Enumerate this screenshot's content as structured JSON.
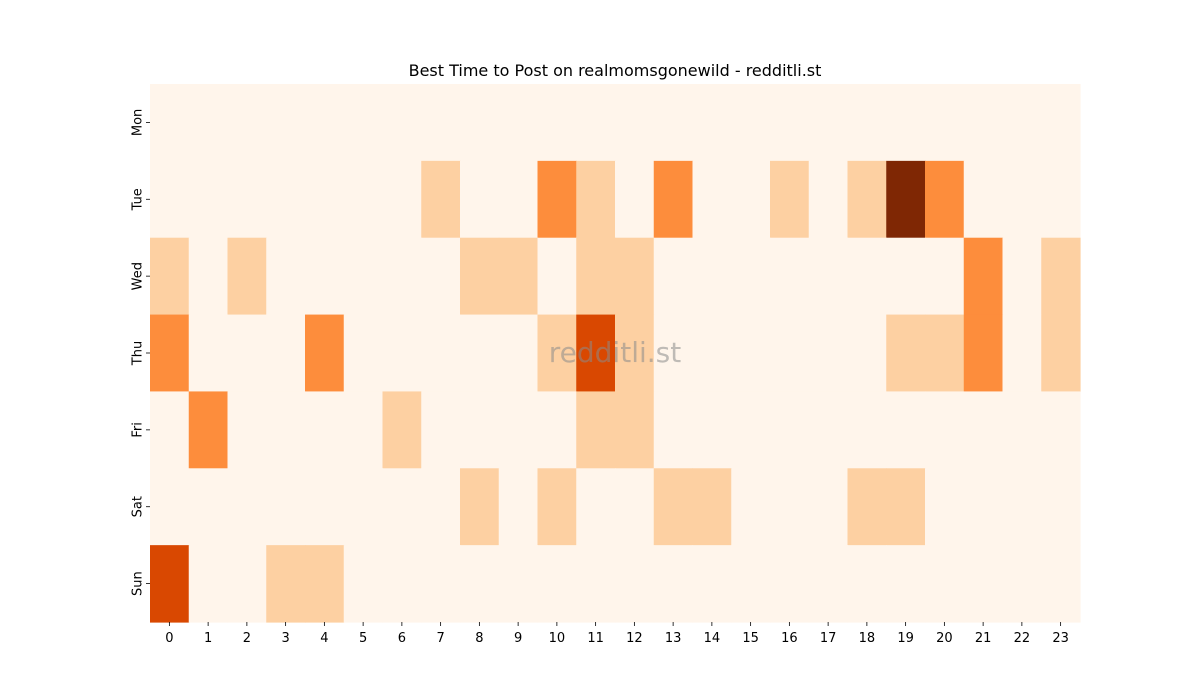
{
  "chart_data": {
    "type": "heatmap",
    "title": "Best Time to Post on realmomsgonewild - redditli.st",
    "xlabel": "",
    "ylabel": "",
    "x_categories": [
      "0",
      "1",
      "2",
      "3",
      "4",
      "5",
      "6",
      "7",
      "8",
      "9",
      "10",
      "11",
      "12",
      "13",
      "14",
      "15",
      "16",
      "17",
      "18",
      "19",
      "20",
      "21",
      "22",
      "23"
    ],
    "y_categories": [
      "Mon",
      "Tue",
      "Wed",
      "Thu",
      "Fri",
      "Sat",
      "Sun"
    ],
    "values": [
      [
        0,
        0,
        0,
        0,
        0,
        0,
        0,
        0,
        0,
        0,
        0,
        0,
        0,
        0,
        0,
        0,
        0,
        0,
        0,
        0,
        0,
        0,
        0,
        0
      ],
      [
        0,
        0,
        0,
        0,
        0,
        0,
        0,
        1,
        0,
        0,
        2,
        1,
        0,
        2,
        0,
        0,
        1,
        0,
        1,
        4,
        2,
        0,
        0,
        0
      ],
      [
        1,
        0,
        1,
        0,
        0,
        0,
        0,
        0,
        1,
        1,
        0,
        1,
        1,
        0,
        0,
        0,
        0,
        0,
        0,
        0,
        0,
        2,
        0,
        1
      ],
      [
        2,
        0,
        0,
        0,
        2,
        0,
        0,
        0,
        0,
        0,
        1,
        3,
        1,
        0,
        0,
        0,
        0,
        0,
        0,
        1,
        1,
        2,
        0,
        1
      ],
      [
        0,
        2,
        0,
        0,
        0,
        0,
        1,
        0,
        0,
        0,
        0,
        1,
        1,
        0,
        0,
        0,
        0,
        0,
        0,
        0,
        0,
        0,
        0,
        0
      ],
      [
        0,
        0,
        0,
        0,
        0,
        0,
        0,
        0,
        1,
        0,
        1,
        0,
        0,
        1,
        1,
        0,
        0,
        0,
        1,
        1,
        0,
        0,
        0,
        0
      ],
      [
        3,
        0,
        0,
        1,
        1,
        0,
        0,
        0,
        0,
        0,
        0,
        0,
        0,
        0,
        0,
        0,
        0,
        0,
        0,
        0,
        0,
        0,
        0,
        0
      ]
    ],
    "colormap": "Oranges",
    "color_scale": [
      "#fff5eb",
      "#fdd0a2",
      "#fd8d3c",
      "#d94801",
      "#7f2704"
    ],
    "grid": false,
    "colorbar": false,
    "watermark": "redditli.st"
  }
}
